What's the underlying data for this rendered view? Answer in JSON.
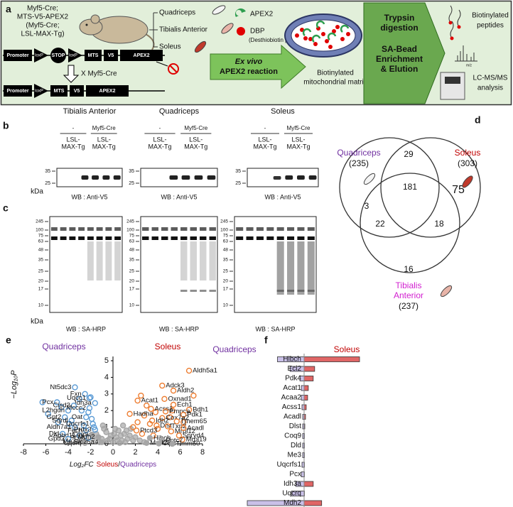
{
  "panel_a": {
    "label": "a",
    "mouse_genotype": [
      "Myf5-Cre;",
      "MTS-V5-APEX2",
      "(Myf5-Cre;",
      "LSL-MAX-Tg)"
    ],
    "muscles": [
      "Quadriceps",
      "Tibialis Anterior",
      "Soleus"
    ],
    "legend": {
      "apex2": "APEX2",
      "dbp": "DBP",
      "dbp_full": "(Desthiobiotin phenol)"
    },
    "construct_top": [
      "Promoter",
      "loxP",
      "STOP",
      "loxP",
      "MTS",
      "V5",
      "APEX2"
    ],
    "cross": "X Myf5-Cre",
    "construct_bottom": [
      "Promoter",
      "loxP",
      "MTS",
      "V5",
      "APEX2"
    ],
    "reaction": [
      "Ex vivo",
      "APEX2 reaction"
    ],
    "matrix": [
      "Biotinylated",
      "mitochondrial matrix"
    ],
    "steps": [
      "Trypsin",
      "digestion",
      "SA-Bead",
      "Enrichment",
      "& Elution"
    ],
    "peptides": [
      "Biotinylated",
      "peptides"
    ],
    "ms_axis": "m/z",
    "ms": [
      "LC-MS/MS",
      "analysis"
    ]
  },
  "panel_b": {
    "label": "b",
    "kda": "kDa",
    "blots": [
      {
        "tissue": "Tibialis Anterior",
        "cre": [
          "-",
          "Myf5-Cre"
        ],
        "genotype": [
          [
            "LSL-",
            "MAX-Tg"
          ],
          [
            "LSL-",
            "MAX-Tg"
          ]
        ],
        "markers": [
          35,
          25
        ],
        "wb": "WB : Anti-V5"
      },
      {
        "tissue": "Quadriceps",
        "cre": [
          "-",
          "Myf5-Cre"
        ],
        "genotype": [
          [
            "LSL-",
            "MAX-Tg"
          ],
          [
            "LSL-",
            "MAX-Tg"
          ]
        ],
        "markers": [
          35,
          25
        ],
        "wb": "WB : Anti-V5"
      },
      {
        "tissue": "Soleus",
        "cre": [
          "-",
          "Myf5-Cre"
        ],
        "genotype": [
          [
            "LSL-",
            "MAX-Tg"
          ],
          [
            "LSL-",
            "MAX-Tg"
          ]
        ],
        "markers": [
          35,
          25
        ],
        "wb": "WB : Anti-V5"
      }
    ]
  },
  "panel_c": {
    "label": "c",
    "kda": "kDa",
    "blots": [
      {
        "markers": [
          245,
          100,
          75,
          63,
          48,
          35,
          25,
          20,
          17,
          10
        ],
        "wb": "WB : SA-HRP"
      },
      {
        "markers": [
          245,
          100,
          75,
          63,
          48,
          35,
          25,
          20,
          17,
          10
        ],
        "wb": "WB : SA-HRP"
      },
      {
        "markers": [
          245,
          100,
          75,
          63,
          48,
          35,
          25,
          20,
          17,
          10
        ],
        "wb": "WB : SA-HRP"
      }
    ]
  },
  "panel_d": {
    "label": "d",
    "sets": [
      {
        "name": [
          "Quadriceps"
        ],
        "count": "(235)",
        "color": "#7030a0"
      },
      {
        "name": [
          "Soleus"
        ],
        "count": "(303)",
        "color": "#c00000"
      },
      {
        "name": [
          "Tibialis",
          "Anterior"
        ],
        "count": "(237)",
        "color": "#d21fd0"
      }
    ],
    "regions": [
      3,
      29,
      75,
      181,
      22,
      18,
      16
    ]
  },
  "chart_data": [
    {
      "type": "scatter",
      "label": "e",
      "left_title": "Quadriceps",
      "left_color": "#7030a0",
      "right_title": "Soleus",
      "right_color": "#c00000",
      "ylabel": "−Log₁₀P",
      "xlabel": {
        "prefix": "Log₂FC",
        "numerator": "Soleus",
        "separator": "/",
        "denominator": "Quadriceps"
      },
      "xlim": [
        -8,
        8
      ],
      "xticks": [
        -8,
        -6,
        -4,
        -2,
        0,
        2,
        4,
        6,
        8
      ],
      "ylim": [
        0,
        5
      ],
      "yticks": [
        0,
        1,
        2,
        3,
        4,
        5
      ],
      "series": [
        {
          "color": "#5b9bd5",
          "x": [
            -6.3,
            -5.8,
            -4.6,
            -3.0,
            -2.8,
            -2.2,
            -3.9,
            -1.9,
            -2.6,
            -4.9,
            -1.7,
            -2.0
          ],
          "values": [
            2.5,
            1.8,
            2.2,
            2.7,
            2.0,
            1.9,
            1.2,
            1.5,
            1.1,
            1.3,
            1.0,
            2.8
          ]
        },
        {
          "color": "#ed7d31",
          "x": [
            7.2,
            2.5,
            3.0,
            3.8,
            5.1,
            2.2,
            2.8,
            3.3,
            4.0,
            1.8,
            2.6,
            3.6,
            6.3,
            5.3
          ],
          "values": [
            2.9,
            2.9,
            2.3,
            1.9,
            1.6,
            1.3,
            1.7,
            1.2,
            0.9,
            1.0,
            0.6,
            0.5,
            1.3,
            2.0
          ]
        },
        {
          "color": "#a6a6a6",
          "x": [
            -1.5,
            -1.0,
            -0.8,
            -0.5,
            -0.2,
            0.0,
            0.3,
            0.5,
            0.8,
            1.0,
            1.3,
            1.6,
            2.0,
            2.4,
            -1.2,
            -0.6,
            0.2,
            0.7,
            1.1,
            1.5,
            -0.3,
            0.4,
            0.9,
            1.8,
            2.8,
            -1.8,
            0.1,
            0.6,
            1.2,
            -0.9
          ],
          "values": [
            0.6,
            0.3,
            0.9,
            0.2,
            0.5,
            0.1,
            0.4,
            0.8,
            0.2,
            0.6,
            0.3,
            0.9,
            0.4,
            0.2,
            0.1,
            0.7,
            0.9,
            0.5,
            0.1,
            0.5,
            0.3,
            0.2,
            1.1,
            0.2,
            0.1,
            0.3,
            0.6,
            0.05,
            0.8,
            1.1
          ]
        }
      ],
      "genes": [
        {
          "name": "Nt5dc3",
          "x": -3.4,
          "y": 3.4,
          "color": "#5b9bd5"
        },
        {
          "name": "Fxn",
          "x": -2.5,
          "y": 3.0,
          "color": "#5b9bd5"
        },
        {
          "name": "Uqcc1",
          "x": -2.1,
          "y": 2.75,
          "color": "#5b9bd5"
        },
        {
          "name": "Pcx",
          "x": -5.0,
          "y": 2.5,
          "color": "#5b9bd5"
        },
        {
          "name": "Idh3a",
          "x": -1.6,
          "y": 2.45,
          "color": "#5b9bd5"
        },
        {
          "name": "Cisd3",
          "x": -3.5,
          "y": 2.3,
          "color": "#5b9bd5"
        },
        {
          "name": "L2hgdh",
          "x": -4.0,
          "y": 2.0,
          "color": "#5b9bd5"
        },
        {
          "name": "Mccc2",
          "x": -2.1,
          "y": 2.15,
          "color": "#5b9bd5"
        },
        {
          "name": "Gpt2",
          "x": -4.3,
          "y": 1.6,
          "color": "#5b9bd5"
        },
        {
          "name": "Sqrdl",
          "x": -3.7,
          "y": 1.4,
          "color": "#5b9bd5"
        },
        {
          "name": "Oat",
          "x": -2.4,
          "y": 1.6,
          "color": "#5b9bd5"
        },
        {
          "name": "Aldh7a1",
          "x": -3.4,
          "y": 1.0,
          "color": "#5b9bd5"
        },
        {
          "name": "Dld",
          "x": -4.5,
          "y": 0.6,
          "color": "#5b9bd5"
        },
        {
          "name": "Fech",
          "x": -2.4,
          "y": 0.8,
          "color": "#5b9bd5"
        },
        {
          "name": "Abhd11",
          "x": -3.0,
          "y": 0.5,
          "color": "#5b9bd5"
        },
        {
          "name": "Pccb",
          "x": -2.2,
          "y": 0.35,
          "color": "#5b9bd5"
        },
        {
          "name": "Gpd2",
          "x": -4.0,
          "y": 0.3,
          "color": "#5b9bd5"
        },
        {
          "name": "Coq9",
          "x": -1.9,
          "y": 0.55,
          "color": "#a6a6a6"
        },
        {
          "name": "Me3",
          "x": -3.0,
          "y": 0.15,
          "color": "#a6a6a6"
        },
        {
          "name": "Uqcrq",
          "x": -2.5,
          "y": 0.05,
          "color": "#a6a6a6"
        },
        {
          "name": "Slc25a4",
          "x": -1.0,
          "y": 0.1,
          "color": "#a6a6a6"
        },
        {
          "name": "Mdh2",
          "x": -1.3,
          "y": 0.4,
          "color": "#a6a6a6"
        },
        {
          "name": "Uqcrfs1",
          "x": -1.8,
          "y": 1.2,
          "color": "#5b9bd5"
        },
        {
          "name": "Prdx3",
          "x": -1.6,
          "y": 0.85,
          "color": "#5b9bd5"
        },
        {
          "name": "Aldh5a1",
          "x": 6.8,
          "y": 4.4,
          "color": "#ed7d31"
        },
        {
          "name": "Adck3",
          "x": 4.4,
          "y": 3.5,
          "color": "#ed7d31"
        },
        {
          "name": "Aldh2",
          "x": 5.4,
          "y": 3.2,
          "color": "#ed7d31"
        },
        {
          "name": "Acat1",
          "x": 2.2,
          "y": 2.6,
          "color": "#ed7d31"
        },
        {
          "name": "Oxnad1",
          "x": 4.6,
          "y": 2.7,
          "color": "#ed7d31"
        },
        {
          "name": "Ech1",
          "x": 5.4,
          "y": 2.35,
          "color": "#ed7d31"
        },
        {
          "name": "Bdh1",
          "x": 6.8,
          "y": 2.05,
          "color": "#ed7d31"
        },
        {
          "name": "Acss1",
          "x": 3.4,
          "y": 2.1,
          "color": "#ed7d31"
        },
        {
          "name": "Pmpca",
          "x": 4.7,
          "y": 1.95,
          "color": "#ed7d31"
        },
        {
          "name": "Pdk1",
          "x": 6.3,
          "y": 1.75,
          "color": "#ed7d31"
        },
        {
          "name": "Hadha",
          "x": 1.5,
          "y": 1.8,
          "color": "#ed7d31"
        },
        {
          "name": "Cox7a2",
          "x": 4.4,
          "y": 1.55,
          "color": "#ed7d31"
        },
        {
          "name": "Tmem65",
          "x": 5.7,
          "y": 1.35,
          "color": "#ed7d31"
        },
        {
          "name": "Idh2",
          "x": 3.5,
          "y": 1.4,
          "color": "#ed7d31"
        },
        {
          "name": "Dlst",
          "x": 3.9,
          "y": 1.1,
          "color": "#ed7d31"
        },
        {
          "name": "Txn2",
          "x": 4.9,
          "y": 1.05,
          "color": "#ed7d31"
        },
        {
          "name": "Ptcd3",
          "x": 2.1,
          "y": 0.8,
          "color": "#ed7d31"
        },
        {
          "name": "Mrpl12",
          "x": 5.2,
          "y": 0.75,
          "color": "#ed7d31"
        },
        {
          "name": "Acadl",
          "x": 6.3,
          "y": 0.95,
          "color": "#ed7d31"
        },
        {
          "name": "Spryd4",
          "x": 5.9,
          "y": 0.5,
          "color": "#ed7d31"
        },
        {
          "name": "Mrpl19",
          "x": 6.2,
          "y": 0.25,
          "color": "#ed7d31"
        },
        {
          "name": "Hibch",
          "x": 3.3,
          "y": 0.35,
          "color": "#a6a6a6"
        },
        {
          "name": "Pptc7",
          "x": 4.4,
          "y": 0.2,
          "color": "#a6a6a6"
        },
        {
          "name": "Mrpl28",
          "x": 3.0,
          "y": 0.05,
          "color": "#a6a6a6"
        },
        {
          "name": "Clpx",
          "x": 4.1,
          "y": 0.02,
          "color": "#a6a6a6"
        },
        {
          "name": "Timm50",
          "x": 5.3,
          "y": 0.0,
          "color": "#a6a6a6"
        }
      ]
    },
    {
      "type": "hbar",
      "label": "f",
      "categories": [
        "Hibch",
        "Eci2",
        "Pdk4",
        "Acat1",
        "Acaa2",
        "Acss1",
        "Acadl",
        "Dlst",
        "Coq9",
        "Dld",
        "Me3",
        "Uqcrfs1",
        "Pcx",
        "Idh3a",
        "Uqcrq",
        "Mdh2"
      ],
      "series": [
        {
          "name": "Soleus",
          "color": "#e06666",
          "values": [
            79,
            15,
            13,
            6,
            5,
            3,
            2,
            1,
            0.5,
            0.5,
            0.5,
            0.5,
            0.5,
            13,
            0.5,
            25
          ]
        },
        {
          "name": "Quadriceps",
          "color": "#c9c0e8",
          "values": [
            38,
            20,
            6,
            4,
            4,
            3,
            2,
            2,
            2,
            2,
            2,
            3,
            4,
            12,
            18,
            81
          ]
        }
      ]
    }
  ]
}
